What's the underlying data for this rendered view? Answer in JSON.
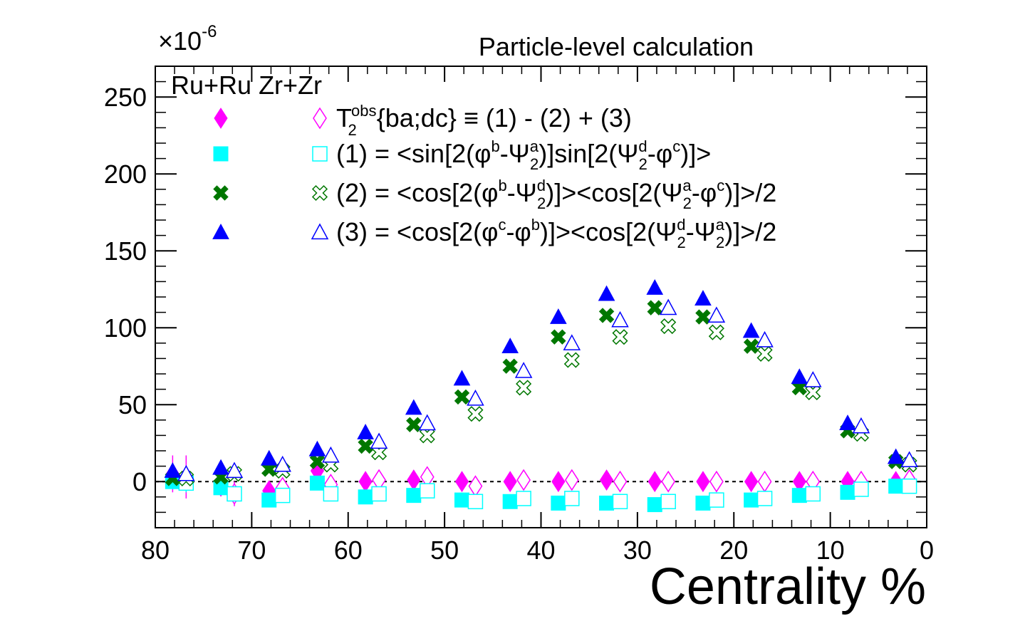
{
  "chart_data": {
    "type": "scatter",
    "title": "Particle-level calculation",
    "xlabel": "Centrality %",
    "y_multiplier": "×10",
    "y_multiplier_exp": "-6",
    "xlim": [
      80,
      0
    ],
    "ylim": [
      -30,
      270
    ],
    "x_ticks": [
      80,
      70,
      60,
      50,
      40,
      30,
      20,
      10,
      0
    ],
    "y_ticks": [
      0,
      50,
      100,
      150,
      200,
      250
    ],
    "reference_line_y": 0,
    "legend_header": "Ru+Ru Zr+Zr",
    "legend_placement": "top-left",
    "legend": [
      {
        "main": "T",
        "sup": "obs",
        "sub": "2",
        "rest": "{ba;dc} ≡ (1) - (2) + (3)"
      },
      {
        "text": "(1) = <sin[2(φ^b-Ψ_2^a)]sin[2(Ψ_2^d-φ^c)]>"
      },
      {
        "text": "(2) = <cos[2(φ^b-Ψ_2^d)]><cos[2(Ψ_2^a-φ^c)]>/2"
      },
      {
        "text": "(3) = <cos[2(φ^c-φ^b)]><cos[2(Ψ_2^d-Ψ_2^a)]>/2"
      }
    ],
    "series": [
      {
        "group": "Ru+Ru",
        "color": "#ff00ff",
        "marker": "diamond",
        "filled": true,
        "x": [
          78.2,
          73.2,
          68.2,
          63.2,
          58.2,
          53.2,
          48.2,
          43.2,
          38.2,
          33.2,
          28.2,
          23.2,
          18.2,
          13.2,
          8.2,
          3.2
        ],
        "y": [
          5,
          -3,
          -6,
          7,
          0,
          1,
          0,
          0,
          0,
          1,
          0,
          0,
          0,
          0,
          0,
          0
        ],
        "err": [
          12,
          6,
          4,
          3,
          2,
          2,
          2,
          1,
          1,
          1,
          1,
          1,
          1,
          1,
          1,
          1
        ]
      },
      {
        "group": "Zr+Zr",
        "color": "#ff00ff",
        "marker": "diamond",
        "filled": false,
        "x": [
          76.8,
          71.8,
          66.8,
          61.8,
          56.8,
          51.8,
          46.8,
          41.8,
          36.8,
          31.8,
          26.8,
          21.8,
          16.8,
          11.8,
          6.8,
          1.8
        ],
        "y": [
          3,
          -8,
          -4,
          -2,
          1,
          3,
          -3,
          1,
          1,
          0,
          0,
          0,
          0,
          0,
          0,
          1
        ],
        "err": [
          14,
          8,
          5,
          4,
          3,
          2,
          2,
          1,
          1,
          1,
          1,
          1,
          1,
          1,
          1,
          1
        ]
      },
      {
        "group": "Ru+Ru",
        "color": "#00ffff",
        "marker": "square",
        "filled": true,
        "x": [
          78.2,
          73.2,
          68.2,
          63.2,
          58.2,
          53.2,
          48.2,
          43.2,
          38.2,
          33.2,
          28.2,
          23.2,
          18.2,
          13.2,
          8.2,
          3.2
        ],
        "y": [
          0,
          -4,
          -12,
          -1,
          -10,
          -9,
          -12,
          -13,
          -14,
          -14,
          -15,
          -14,
          -12,
          -9,
          -7,
          -3
        ],
        "err": [
          5,
          3,
          2,
          2,
          1,
          1,
          1,
          1,
          1,
          1,
          1,
          1,
          1,
          1,
          1,
          1
        ]
      },
      {
        "group": "Zr+Zr",
        "color": "#00ffff",
        "marker": "square",
        "filled": false,
        "x": [
          76.8,
          71.8,
          66.8,
          61.8,
          56.8,
          51.8,
          46.8,
          41.8,
          36.8,
          31.8,
          26.8,
          21.8,
          16.8,
          11.8,
          6.8,
          1.8
        ],
        "y": [
          -1,
          -8,
          -9,
          -8,
          -8,
          -6,
          -13,
          -11,
          -11,
          -13,
          -13,
          -12,
          -11,
          -8,
          -5,
          -3
        ],
        "err": [
          6,
          3,
          2,
          2,
          2,
          1,
          1,
          1,
          1,
          1,
          1,
          1,
          1,
          1,
          1,
          1
        ]
      },
      {
        "group": "Ru+Ru",
        "color": "#007700",
        "marker": "cross",
        "filled": true,
        "x": [
          78.2,
          73.2,
          68.2,
          63.2,
          58.2,
          53.2,
          48.2,
          43.2,
          38.2,
          33.2,
          28.2,
          23.2,
          18.2,
          13.2,
          8.2,
          3.2
        ],
        "y": [
          2,
          3,
          8,
          13,
          23,
          37,
          55,
          75,
          94,
          108,
          113,
          107,
          88,
          61,
          33,
          13
        ],
        "err": [
          3,
          2,
          2,
          1,
          1,
          1,
          1,
          1,
          1,
          1,
          1,
          1,
          1,
          1,
          1,
          1
        ]
      },
      {
        "group": "Zr+Zr",
        "color": "#007700",
        "marker": "cross",
        "filled": false,
        "x": [
          76.8,
          71.8,
          66.8,
          61.8,
          56.8,
          51.8,
          46.8,
          41.8,
          36.8,
          31.8,
          26.8,
          21.8,
          16.8,
          11.8,
          6.8,
          1.8
        ],
        "y": [
          2,
          5,
          7,
          11,
          19,
          30,
          44,
          61,
          79,
          94,
          101,
          97,
          83,
          58,
          31,
          11
        ],
        "err": [
          3,
          2,
          2,
          1,
          1,
          1,
          1,
          1,
          1,
          1,
          1,
          1,
          1,
          1,
          1,
          1
        ]
      },
      {
        "group": "Ru+Ru",
        "color": "#0000ff",
        "marker": "triangle",
        "filled": true,
        "x": [
          78.2,
          73.2,
          68.2,
          63.2,
          58.2,
          53.2,
          48.2,
          43.2,
          38.2,
          33.2,
          28.2,
          23.2,
          18.2,
          13.2,
          8.2,
          3.2
        ],
        "y": [
          7,
          9,
          15,
          21,
          32,
          48,
          67,
          88,
          107,
          122,
          126,
          119,
          98,
          68,
          38,
          16
        ],
        "err": [
          3,
          2,
          2,
          1,
          1,
          1,
          1,
          1,
          1,
          1,
          1,
          1,
          1,
          1,
          1,
          1
        ]
      },
      {
        "group": "Zr+Zr",
        "color": "#0000ff",
        "marker": "triangle",
        "filled": false,
        "x": [
          76.8,
          71.8,
          66.8,
          61.8,
          56.8,
          51.8,
          46.8,
          41.8,
          36.8,
          31.8,
          26.8,
          21.8,
          16.8,
          11.8,
          6.8,
          1.8
        ],
        "y": [
          5,
          7,
          11,
          17,
          26,
          38,
          54,
          72,
          90,
          105,
          113,
          108,
          92,
          66,
          36,
          14
        ],
        "err": [
          3,
          2,
          2,
          1,
          1,
          1,
          1,
          1,
          1,
          1,
          1,
          1,
          1,
          1,
          1,
          1
        ]
      }
    ]
  }
}
